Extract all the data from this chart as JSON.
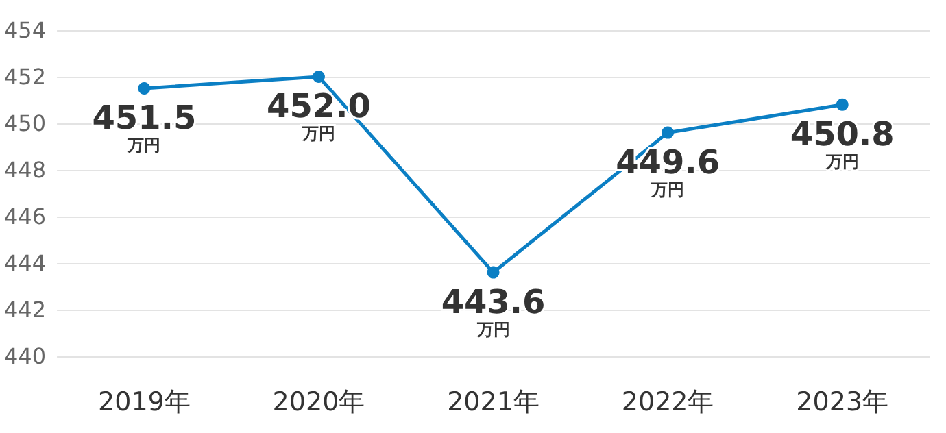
{
  "chart_data": {
    "type": "line",
    "categories": [
      "2019年",
      "2020年",
      "2021年",
      "2022年",
      "2023年"
    ],
    "series": [
      {
        "color": "#0b7fc4",
        "values": [
          451.5,
          452.0,
          443.6,
          449.6,
          450.8
        ],
        "value_labels": [
          "451.5\n万円",
          "452.0\n万円",
          "443.6\n万円",
          "449.6\n万円",
          "450.8\n万円"
        ]
      }
    ],
    "ylim": [
      440,
      454
    ],
    "yticks": [
      440,
      442,
      444,
      446,
      448,
      450,
      452,
      454
    ],
    "grid": "y",
    "marker": "circle",
    "line_style": "solid"
  }
}
